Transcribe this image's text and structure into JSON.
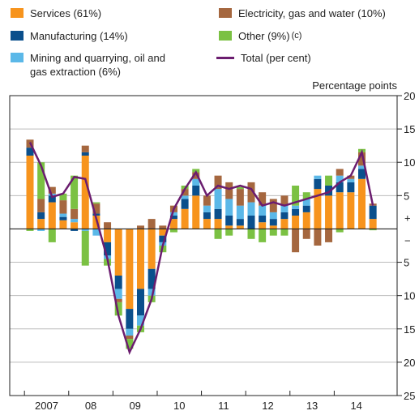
{
  "chart_data": {
    "type": "bar-line",
    "y_unit_label": "Percentage points",
    "categories": [
      null,
      null,
      null,
      null,
      null,
      null,
      null,
      null,
      null,
      null,
      null,
      null,
      null,
      null,
      null,
      null,
      null,
      null,
      null,
      null,
      null,
      null,
      null,
      null,
      null,
      null,
      null,
      null,
      null,
      null,
      null,
      null
    ],
    "x_group_labels": [
      "2007",
      "08",
      "09",
      "10",
      "11",
      "12",
      "13",
      "14"
    ],
    "series": [
      {
        "name": "Services (61%)",
        "color": "#f7941d",
        "values": [
          11,
          1.5,
          4,
          1.3,
          1,
          11,
          2,
          -2,
          -7,
          -12,
          -9,
          -6,
          -1,
          1.5,
          3,
          5,
          1.5,
          1.5,
          0.5,
          0.5,
          0,
          1,
          0.5,
          1.5,
          2,
          2.5,
          6,
          5,
          5.5,
          5.5,
          7.5,
          1.5
        ]
      },
      {
        "name": "Manufacturing (14%)",
        "color": "#0a4f8c",
        "values": [
          1.2,
          1,
          1,
          0.5,
          -0.3,
          0.5,
          0.3,
          -2,
          -2,
          -3,
          -4,
          -3,
          -1,
          0.5,
          1.5,
          1.5,
          1,
          1.5,
          1.5,
          1,
          2,
          1,
          1,
          1,
          1,
          1,
          1.5,
          1.5,
          1.5,
          1.5,
          1.5,
          2
        ]
      },
      {
        "name": "Mining and quarrying, oil and gas extraction (6%)",
        "color": "#5bb8e8",
        "values": [
          0,
          -0.3,
          0.3,
          0.5,
          0.5,
          -0.3,
          -1,
          -0.5,
          -1.5,
          -1,
          -1.5,
          -1,
          -0.5,
          0.5,
          0.5,
          1,
          1,
          3,
          2.5,
          2,
          2,
          1.5,
          1,
          1,
          0.5,
          1,
          0.5,
          0,
          1,
          0.5,
          0.5,
          0
        ]
      },
      {
        "name": "Electricity, gas and water (10%)",
        "color": "#a5673f",
        "values": [
          1.2,
          2,
          1,
          2,
          1.5,
          1,
          1.5,
          1,
          -0.5,
          -0.5,
          0.5,
          1.5,
          0.5,
          1,
          1,
          1,
          1.5,
          2,
          2.5,
          2.5,
          3,
          2,
          2,
          1.5,
          -3.5,
          -1.5,
          -2.5,
          -2,
          1,
          0.5,
          2,
          0.3
        ]
      },
      {
        "name": "Other (9%)",
        "name_note": "(c)",
        "color": "#7bc143",
        "values": [
          -0.3,
          5.5,
          -2,
          1,
          5,
          -5.2,
          0.2,
          -1,
          -2,
          -1.5,
          -1,
          -1,
          -1,
          -0.5,
          0.5,
          0.5,
          0,
          -1.5,
          -1,
          0.3,
          -1.5,
          -2,
          -1,
          -1,
          3,
          1,
          0,
          1.5,
          -0.5,
          0,
          0.5,
          -0.2
        ]
      },
      {
        "name": "Total (per cent)",
        "type": "line",
        "color": "#6b1d6f",
        "values": [
          13,
          9.5,
          4.8,
          5.3,
          7.8,
          7.5,
          1.5,
          -4.5,
          -13,
          -18.5,
          -15,
          -10.5,
          -2.5,
          3,
          6,
          8.5,
          5,
          6.5,
          6,
          6.5,
          6,
          3.5,
          4,
          3.5,
          4,
          4.5,
          5,
          5.5,
          7,
          8,
          11.5,
          3.5
        ]
      }
    ],
    "ylim": [
      -25,
      20
    ],
    "yticks": [
      20,
      15,
      10,
      5,
      {
        "value": -5,
        "label": "5"
      },
      {
        "value": -10,
        "label": "10"
      },
      {
        "value": -15,
        "label": "15"
      },
      {
        "value": -20,
        "label": "20"
      },
      {
        "value": -25,
        "label": "25"
      }
    ],
    "sign_labels": [
      "+",
      "−"
    ],
    "grid": true
  }
}
